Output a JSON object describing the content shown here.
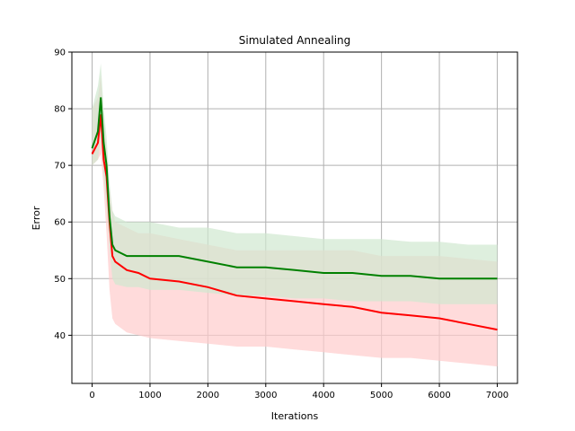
{
  "chart_data": {
    "type": "line",
    "title": "Simulated Annealing",
    "xlabel": "Iterations",
    "ylabel": "Error",
    "xlim": [
      -350,
      7350
    ],
    "ylim": [
      31.5,
      90
    ],
    "grid": true,
    "x_ticks": [
      0,
      1000,
      2000,
      3000,
      4000,
      5000,
      6000,
      7000
    ],
    "y_ticks": [
      40,
      50,
      60,
      70,
      80,
      90
    ],
    "series": [
      {
        "color": "#ff0000",
        "band_color": "#ffcccc",
        "x": [
          0,
          100,
          150,
          200,
          250,
          300,
          350,
          400,
          600,
          800,
          1000,
          1500,
          2000,
          2500,
          3000,
          3500,
          4000,
          4500,
          5000,
          5500,
          6000,
          6500,
          7000
        ],
        "values": [
          72,
          74,
          79,
          71,
          68,
          60,
          54,
          53,
          51.5,
          51,
          50,
          49.5,
          48.5,
          47,
          46.5,
          46,
          45.5,
          45,
          44,
          43.5,
          43,
          42,
          41
        ],
        "lower": [
          70,
          71,
          72,
          66,
          58,
          48,
          43,
          42,
          40.5,
          40,
          39.5,
          39,
          38.5,
          38,
          38,
          37.5,
          37,
          36.5,
          36,
          36,
          35.5,
          35,
          34.5
        ],
        "upper": [
          80,
          82,
          86,
          78,
          73,
          66,
          62,
          60,
          59,
          58,
          58,
          57,
          56,
          55,
          55,
          55,
          55,
          55,
          54,
          54,
          54,
          53.5,
          53
        ]
      },
      {
        "color": "#008000",
        "band_color": "#d0e8d0",
        "x": [
          0,
          100,
          150,
          200,
          250,
          300,
          350,
          400,
          600,
          800,
          1000,
          1500,
          2000,
          2500,
          3000,
          3500,
          4000,
          4500,
          5000,
          5500,
          6000,
          6500,
          7000
        ],
        "values": [
          73,
          76,
          82,
          74,
          70,
          61,
          56,
          55,
          54,
          54,
          54,
          54,
          53,
          52,
          52,
          51.5,
          51,
          51,
          50.5,
          50.5,
          50,
          50,
          50
        ],
        "lower": [
          70,
          71,
          75,
          68,
          63,
          55,
          50,
          49,
          48.5,
          48.5,
          48,
          48,
          47.5,
          47,
          47,
          46.5,
          46.5,
          46,
          46,
          46,
          45.5,
          45.5,
          45.5
        ],
        "upper": [
          80,
          84,
          88,
          80,
          75,
          67,
          62,
          61,
          60,
          60,
          60,
          59,
          59,
          58,
          58,
          57.5,
          57,
          57,
          57,
          56.5,
          56.5,
          56,
          56
        ]
      }
    ]
  }
}
